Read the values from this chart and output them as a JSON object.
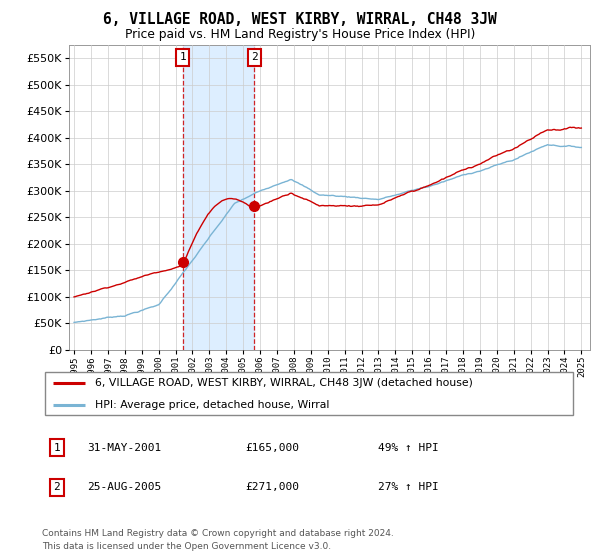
{
  "title": "6, VILLAGE ROAD, WEST KIRBY, WIRRAL, CH48 3JW",
  "subtitle": "Price paid vs. HM Land Registry's House Price Index (HPI)",
  "legend_line1": "6, VILLAGE ROAD, WEST KIRBY, WIRRAL, CH48 3JW (detached house)",
  "legend_line2": "HPI: Average price, detached house, Wirral",
  "sale1_label": "1",
  "sale1_date": "31-MAY-2001",
  "sale1_price": 165000,
  "sale1_price_str": "£165,000",
  "sale1_pct": "49% ↑ HPI",
  "sale1_year": 2001.42,
  "sale2_label": "2",
  "sale2_date": "25-AUG-2005",
  "sale2_price": 271000,
  "sale2_price_str": "£271,000",
  "sale2_pct": "27% ↑ HPI",
  "sale2_year": 2005.65,
  "footnote_line1": "Contains HM Land Registry data © Crown copyright and database right 2024.",
  "footnote_line2": "This data is licensed under the Open Government Licence v3.0.",
  "red_color": "#cc0000",
  "blue_color": "#7ab4d4",
  "shade_color": "#ddeeff",
  "grid_color": "#cccccc",
  "bg_color": "#ffffff",
  "ylim_max": 575000,
  "xlim_start": 1994.7,
  "xlim_end": 2025.5,
  "xtick_start": 1995,
  "xtick_end": 2025
}
